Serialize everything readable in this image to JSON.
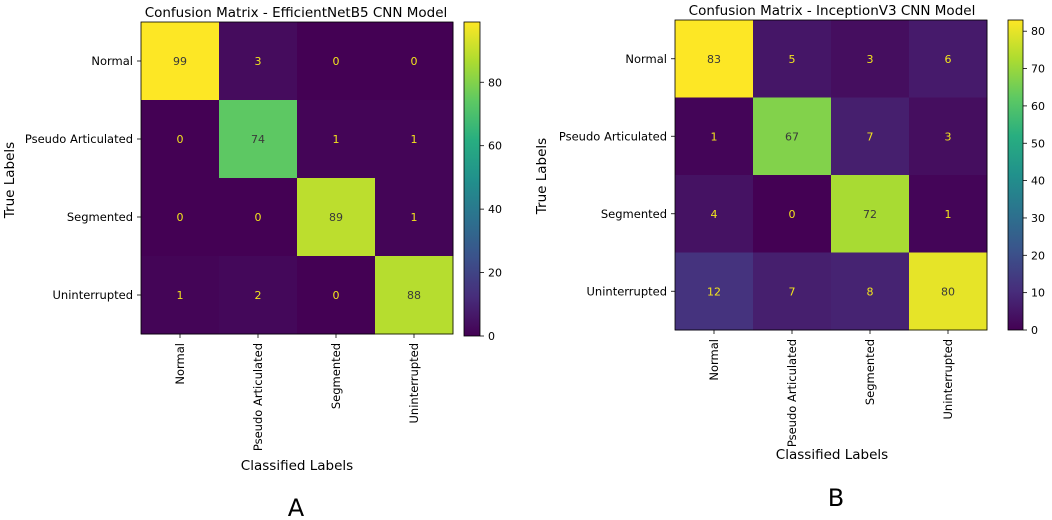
{
  "panels": [
    {
      "label": "A"
    },
    {
      "label": "B"
    }
  ],
  "colorbar_ticks": [
    [
      "0",
      "20",
      "40",
      "60",
      "80"
    ],
    [
      "0",
      "10",
      "20",
      "30",
      "40",
      "50",
      "60",
      "70",
      "80"
    ]
  ],
  "chart_data": [
    {
      "type": "heatmap",
      "title": "Confusion Matrix - EfficientNetB5 CNN Model",
      "xlabel": "Classified Labels",
      "ylabel": "True Labels",
      "categories": [
        "Normal",
        "Pseudo Articulated",
        "Segmented",
        "Uninterrupted"
      ],
      "matrix": [
        [
          99,
          3,
          0,
          0
        ],
        [
          0,
          74,
          1,
          1
        ],
        [
          0,
          0,
          89,
          1
        ],
        [
          1,
          2,
          0,
          88
        ]
      ],
      "colorscale": "viridis",
      "vmin": 0,
      "vmax": 99,
      "colorbar_ticks": [
        0,
        20,
        40,
        60,
        80
      ]
    },
    {
      "type": "heatmap",
      "title": "Confusion Matrix - InceptionV3 CNN Model",
      "xlabel": "Classified Labels",
      "ylabel": "True Labels",
      "categories": [
        "Normal",
        "Pseudo Articulated",
        "Segmented",
        "Uninterrupted"
      ],
      "matrix": [
        [
          83,
          5,
          3,
          6
        ],
        [
          1,
          67,
          7,
          3
        ],
        [
          4,
          0,
          72,
          1
        ],
        [
          12,
          7,
          8,
          80
        ]
      ],
      "colorscale": "viridis",
      "vmin": 0,
      "vmax": 83,
      "colorbar_ticks": [
        0,
        10,
        20,
        30,
        40,
        50,
        60,
        70,
        80
      ]
    }
  ],
  "colors": {
    "text_on_dark": "#f2e51d",
    "text_on_light": "#3a3a3a",
    "axis": "#000000"
  }
}
